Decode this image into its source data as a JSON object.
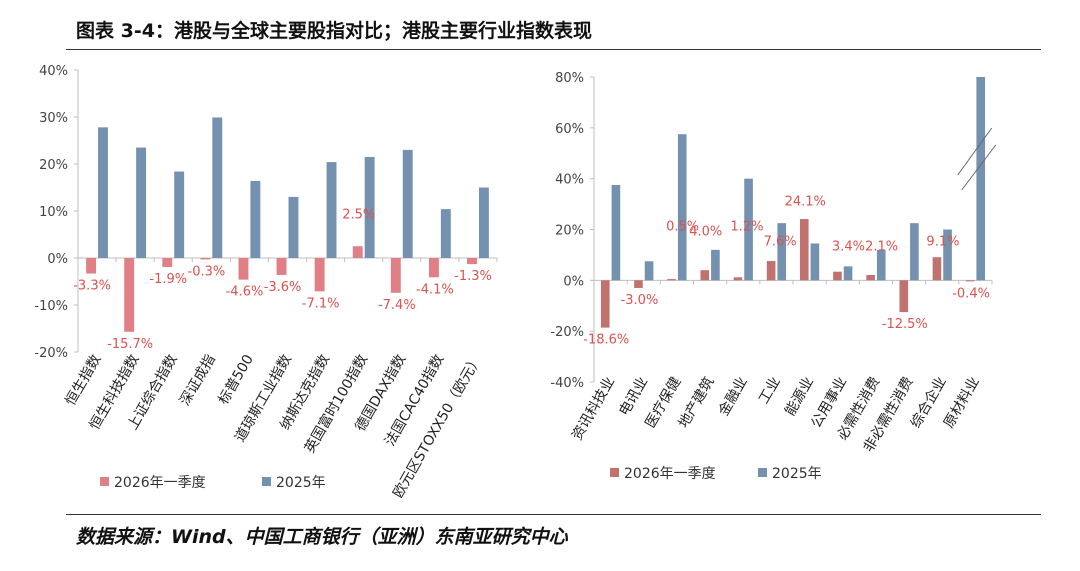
{
  "title": "图表 3-4：港股与全球主要股指对比；港股主要行业指数表现",
  "source": "数据来源：Wind、中国工商银行（亚洲）东南亚研究中心",
  "chart_data": [
    {
      "type": "bar",
      "categories": [
        "恒生指数",
        "恒生科技指数",
        "上证综合指数",
        "深证成指",
        "标普500",
        "道琼斯工业指数",
        "纳斯达克指数",
        "英国富时100指数",
        "德国DAX指数",
        "法国CAC40指数",
        "欧元区STOXX50（欧元）"
      ],
      "series": [
        {
          "name": "2026年一季度",
          "color": "#e07f85",
          "values": [
            -3.3,
            -15.7,
            -1.9,
            -0.3,
            -4.6,
            -3.6,
            -7.1,
            2.5,
            -7.4,
            -4.1,
            -1.3
          ],
          "labels": [
            "-3.3%",
            "-15.7%",
            "-1.9%",
            "-0.3%",
            "-4.6%",
            "-3.6%",
            "-7.1%",
            "2.5%",
            "-7.4%",
            "-4.1%",
            "-1.3%"
          ]
        },
        {
          "name": "2025年",
          "color": "#7491b0",
          "values": [
            27.8,
            23.5,
            18.4,
            29.9,
            16.4,
            13.0,
            20.4,
            21.5,
            23.0,
            10.4,
            15.0
          ]
        }
      ],
      "ylim": [
        -20,
        40
      ],
      "yticks": [
        "-20%",
        "-10%",
        "0%",
        "10%",
        "20%",
        "30%",
        "40%"
      ],
      "legend": "bottom"
    },
    {
      "type": "bar",
      "categories": [
        "资讯科技业",
        "电讯业",
        "医疗保健",
        "地产建筑",
        "金融业",
        "工业",
        "能源业",
        "公用事业",
        "必需性消费",
        "非必需性消费",
        "综合企业",
        "原材料业"
      ],
      "series": [
        {
          "name": "2026年一季度",
          "color": "#c0736e",
          "values": [
            -18.6,
            -3.0,
            0.5,
            4.0,
            1.2,
            7.6,
            24.1,
            3.4,
            2.1,
            -12.5,
            9.1,
            -0.4
          ],
          "labels": [
            "-18.6%",
            "-3.0%",
            "0.5%",
            "4.0%",
            "1.2%",
            "7.6%",
            "24.1%",
            "3.4%",
            "2.1%",
            "-12.5%",
            "9.1%",
            "-0.4%"
          ]
        },
        {
          "name": "2025年",
          "color": "#7491b0",
          "values": [
            37.5,
            7.5,
            57.5,
            12.0,
            40.0,
            22.5,
            14.5,
            5.5,
            12.0,
            22.5,
            20.0,
            80.0
          ]
        }
      ],
      "ylim": [
        -40,
        80
      ],
      "yticks": [
        "-40%",
        "-20%",
        "0%",
        "20%",
        "40%",
        "60%",
        "80%"
      ],
      "axis_break_on": "原材料业",
      "legend": "bottom"
    }
  ]
}
